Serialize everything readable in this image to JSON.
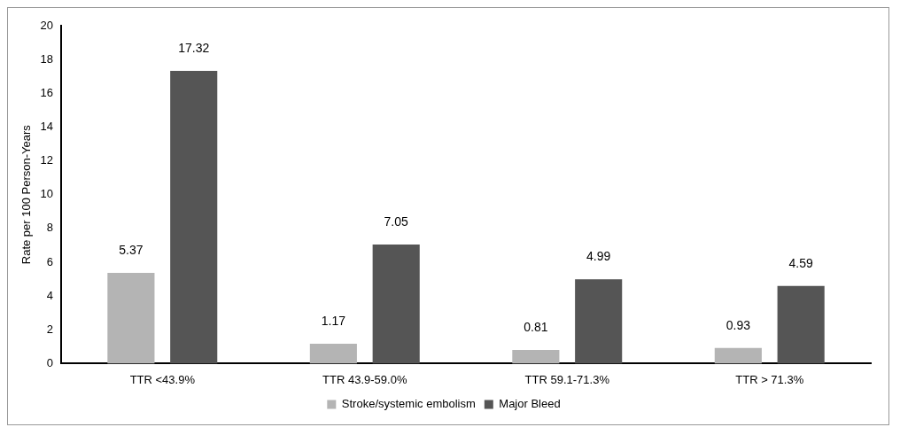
{
  "chart_data": {
    "type": "bar",
    "ylabel": "Rate per 100 Person-Years",
    "categories": [
      "TTR <43.9%",
      "TTR 43.9-59.0%",
      "TTR 59.1-71.3%",
      "TTR > 71.3%"
    ],
    "series": [
      {
        "name": "Stroke/systemic embolism",
        "color": "#b4b4b4",
        "values": [
          5.37,
          1.17,
          0.81,
          0.93
        ]
      },
      {
        "name": "Major Bleed",
        "color": "#555555",
        "values": [
          17.32,
          7.05,
          4.99,
          4.59
        ]
      }
    ],
    "ylim": [
      0,
      20
    ],
    "yticks": [
      0,
      2,
      4,
      6,
      8,
      10,
      12,
      14,
      16,
      18,
      20
    ],
    "grid": false,
    "legend": "bottom",
    "data_labels": true
  }
}
